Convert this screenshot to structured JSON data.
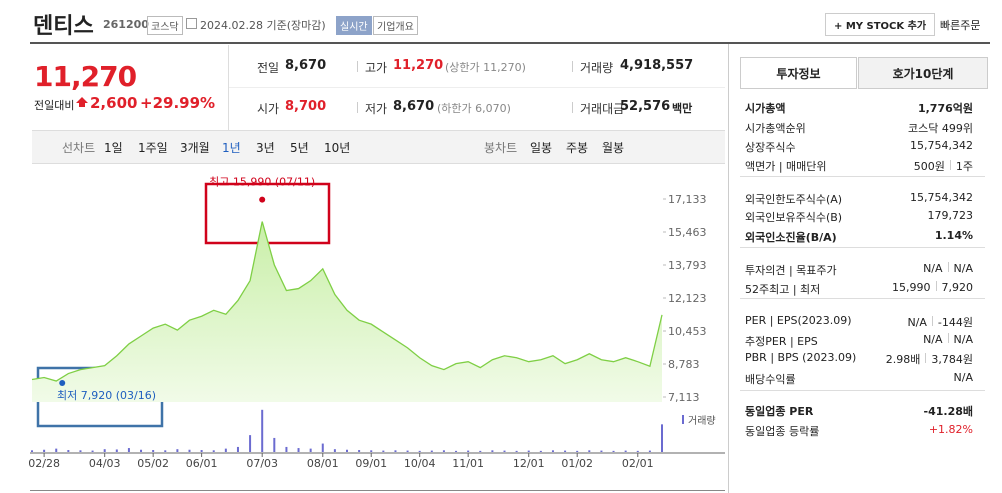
{
  "header": {
    "name": "덴티스",
    "code": "261200",
    "market": "코스닥",
    "date": "2024.02.28 기준(장마감)",
    "realtime": "실시간",
    "company": "기업개요",
    "mystock": "+ MY STOCK 추가",
    "quick_order": "빠른주문"
  },
  "price": {
    "current": "11,270",
    "change_label": "전일대비",
    "change": "2,600",
    "change_pct": "+29.99%"
  },
  "quote": [
    {
      "label": "전일",
      "value": "8,670"
    },
    {
      "label": "고가",
      "value": "11,270",
      "note": "(상한가 11,270)"
    },
    {
      "label": "거래량",
      "value": "4,918,557"
    },
    {
      "label": "시가",
      "value": "8,700"
    },
    {
      "label": "저가",
      "value": "8,670",
      "note": "(하한가 6,070)"
    },
    {
      "label": "거래대금",
      "value": "52,576",
      "note": "백만"
    }
  ],
  "periods": {
    "line_label": "선차트",
    "line": [
      "1일",
      "1주일",
      "3개월",
      "1년",
      "3년",
      "5년",
      "10년"
    ],
    "active": "1년",
    "candle_label": "봉차트",
    "candle": [
      "일봉",
      "주봉",
      "월봉"
    ]
  },
  "chart_data": {
    "type": "line",
    "color": "#7fcf45",
    "categories": [
      null,
      "02/28",
      null,
      null,
      null,
      null,
      "04/03",
      null,
      null,
      null,
      "05/02",
      null,
      null,
      null,
      "06/01",
      null,
      null,
      null,
      null,
      "07/03",
      null,
      null,
      null,
      null,
      "08/01",
      null,
      null,
      null,
      "09/01",
      null,
      null,
      null,
      "10/04",
      null,
      null,
      null,
      "11/01",
      null,
      null,
      null,
      null,
      "12/01",
      null,
      null,
      null,
      "01/02",
      null,
      null,
      null,
      null,
      "02/01",
      null,
      null
    ],
    "values": [
      8000,
      8100,
      7920,
      8300,
      8500,
      8600,
      8700,
      9200,
      9800,
      10200,
      10600,
      10800,
      10500,
      11000,
      11200,
      11500,
      11300,
      12000,
      13000,
      15990,
      13800,
      12500,
      12600,
      13000,
      13600,
      12300,
      11500,
      11000,
      10800,
      10400,
      10000,
      9600,
      9100,
      8700,
      8500,
      8800,
      8900,
      8600,
      9000,
      9200,
      9100,
      8900,
      9000,
      9200,
      8800,
      9000,
      9300,
      9000,
      8900,
      9100,
      8900,
      8670,
      11270
    ],
    "ylim": [
      7113,
      17133
    ],
    "yticks": [
      {
        "value": 17133,
        "label": "17,133"
      },
      {
        "value": 15463,
        "label": "15,463"
      },
      {
        "value": 13793,
        "label": "13,793"
      },
      {
        "value": 12123,
        "label": "12,123"
      },
      {
        "value": 10453,
        "label": "10,453"
      },
      {
        "value": 8783,
        "label": "8,783"
      },
      {
        "value": 7113,
        "label": "7,113"
      }
    ],
    "annotations": [
      {
        "text": "최고 15,990 (07/11)",
        "index": 19,
        "color": "#d0021b"
      },
      {
        "text": "최저 7,920 (03/16)",
        "index": 2,
        "color": "#1f5fbf"
      }
    ],
    "volume": {
      "label": "거래량",
      "color": "#6b6bd0",
      "ylim": [
        0,
        8000000
      ],
      "values": [
        300000,
        400000,
        600000,
        350000,
        300000,
        250000,
        500000,
        450000,
        700000,
        400000,
        350000,
        300000,
        500000,
        400000,
        350000,
        300000,
        600000,
        900000,
        3000000,
        7500000,
        2500000,
        900000,
        700000,
        600000,
        1500000,
        500000,
        400000,
        350000,
        300000,
        250000,
        300000,
        250000,
        200000,
        250000,
        300000,
        200000,
        250000,
        200000,
        300000,
        250000,
        200000,
        250000,
        200000,
        300000,
        250000,
        200000,
        300000,
        250000,
        200000,
        250000,
        200000,
        250000,
        4918557
      ]
    }
  },
  "invest_info": {
    "tabs": [
      "투자정보",
      "호가10단계"
    ],
    "groups": [
      [
        {
          "label": "시가총액",
          "value": "1,776억원",
          "bold": true
        },
        {
          "label": "시가총액순위",
          "value": "코스닥 499위"
        },
        {
          "label": "상장주식수",
          "value": "15,754,342"
        },
        {
          "label": "액면가 | 매매단위",
          "values": [
            "500원",
            "1주"
          ]
        }
      ],
      [
        {
          "label": "외국인한도주식수(A)",
          "value": "15,754,342"
        },
        {
          "label": "외국인보유주식수(B)",
          "value": "179,723"
        },
        {
          "label": "외국인소진율(B/A)",
          "value": "1.14%",
          "bold": true
        }
      ],
      [
        {
          "label": "투자의견 | 목표주가",
          "values": [
            "N/A",
            "N/A"
          ]
        },
        {
          "label": "52주최고 | 최저",
          "values": [
            "15,990",
            "7,920"
          ]
        }
      ],
      [
        {
          "label": "PER | EPS(2023.09)",
          "values": [
            "N/A",
            "-144원"
          ]
        },
        {
          "label": "추정PER | EPS",
          "values": [
            "N/A",
            "N/A"
          ]
        },
        {
          "label": "PBR | BPS (2023.09)",
          "values": [
            "2.98배",
            "3,784원"
          ]
        },
        {
          "label": "배당수익률",
          "value": "N/A"
        }
      ],
      [
        {
          "label": "동일업종 PER",
          "value": "-41.28배",
          "bold": true
        },
        {
          "label": "동일업종 등락률",
          "value": "+1.82%",
          "color": "#e0202a"
        }
      ]
    ]
  }
}
